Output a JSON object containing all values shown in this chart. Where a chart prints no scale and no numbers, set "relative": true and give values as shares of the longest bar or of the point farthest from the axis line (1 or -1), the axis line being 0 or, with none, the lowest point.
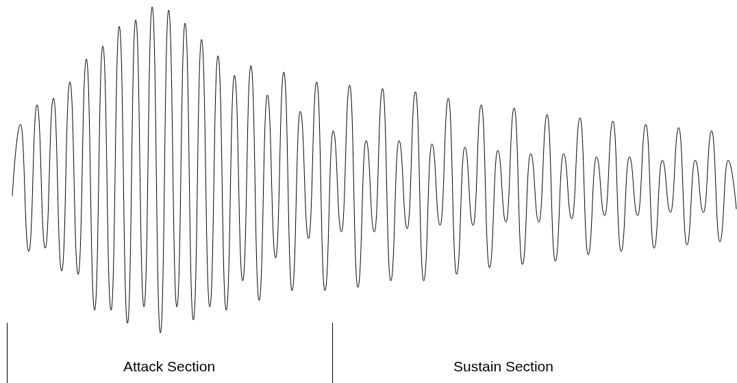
{
  "chart_data": {
    "type": "line",
    "relative": true,
    "marker": "none",
    "color": "#000000",
    "categories": [
      null,
      null,
      null,
      null,
      null,
      null,
      null,
      null,
      null,
      null,
      null,
      null,
      null,
      null,
      null,
      null,
      null,
      null,
      null,
      null,
      null,
      null,
      null,
      null,
      null,
      null,
      null,
      null,
      null,
      null,
      null,
      null,
      null,
      null,
      null,
      null,
      null,
      null,
      null,
      null,
      null,
      null,
      null,
      null,
      null,
      null,
      null,
      null,
      null,
      null,
      null,
      null,
      null,
      null,
      null,
      null,
      null,
      null,
      null,
      null,
      null,
      null,
      null,
      null,
      null,
      null,
      null,
      null,
      null,
      null,
      null,
      null,
      null,
      null,
      null,
      null,
      null,
      null,
      null,
      null,
      null,
      null,
      null,
      null,
      null,
      null,
      null,
      null,
      null
    ],
    "values": [
      0.42,
      0.64,
      0.25,
      0.7,
      0.26,
      0.72,
      0.19,
      0.77,
      0.18,
      0.84,
      0.07,
      0.88,
      0.07,
      0.94,
      0.03,
      0.96,
      0.08,
      1,
      0,
      0.99,
      0.08,
      0.95,
      0.04,
      0.9,
      0.08,
      0.85,
      0.07,
      0.79,
      0.16,
      0.82,
      0.1,
      0.73,
      0.23,
      0.8,
      0.13,
      0.68,
      0.29,
      0.77,
      0.13,
      0.62,
      0.31,
      0.76,
      0.14,
      0.59,
      0.31,
      0.75,
      0.16,
      0.59,
      0.32,
      0.74,
      0.16,
      0.58,
      0.33,
      0.72,
      0.18,
      0.57,
      0.33,
      0.7,
      0.2,
      0.56,
      0.34,
      0.69,
      0.21,
      0.55,
      0.34,
      0.67,
      0.22,
      0.55,
      0.35,
      0.66,
      0.24,
      0.54,
      0.36,
      0.65,
      0.25,
      0.54,
      0.36,
      0.64,
      0.26,
      0.53,
      0.37,
      0.63,
      0.27,
      0.53,
      0.37,
      0.62,
      0.28,
      0.53,
      0.38
    ],
    "annotations": [
      "Attack Section",
      "Sustain Section"
    ]
  }
}
